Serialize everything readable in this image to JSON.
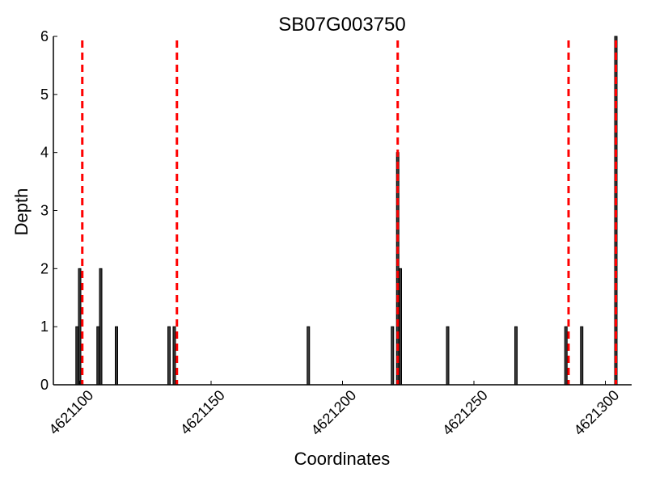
{
  "chart_data": {
    "type": "bar",
    "title": "SB07G003750",
    "xlabel": "Coordinates",
    "ylabel": "Depth",
    "xlim": [
      4621090,
      4621310
    ],
    "ylim": [
      0,
      6
    ],
    "xticks": [
      4621100,
      4621150,
      4621200,
      4621250,
      4621300
    ],
    "yticks": [
      0,
      1,
      2,
      3,
      4,
      5,
      6
    ],
    "grid": false,
    "bars": [
      {
        "x": 4621099,
        "value": 1
      },
      {
        "x": 4621100,
        "value": 2
      },
      {
        "x": 4621107,
        "value": 1
      },
      {
        "x": 4621108,
        "value": 2
      },
      {
        "x": 4621114,
        "value": 1
      },
      {
        "x": 4621134,
        "value": 1
      },
      {
        "x": 4621136,
        "value": 1
      },
      {
        "x": 4621187,
        "value": 1
      },
      {
        "x": 4621219,
        "value": 1
      },
      {
        "x": 4621221,
        "value": 4
      },
      {
        "x": 4621222,
        "value": 2
      },
      {
        "x": 4621240,
        "value": 1
      },
      {
        "x": 4621266,
        "value": 1
      },
      {
        "x": 4621285,
        "value": 1
      },
      {
        "x": 4621291,
        "value": 1
      },
      {
        "x": 4621304,
        "value": 6
      }
    ],
    "cut_sites": [
      4621101,
      4621137,
      4621221,
      4621286,
      4621304
    ],
    "colors": {
      "bars": "#3a3a3a",
      "cut_sites": "#ff0000"
    }
  }
}
